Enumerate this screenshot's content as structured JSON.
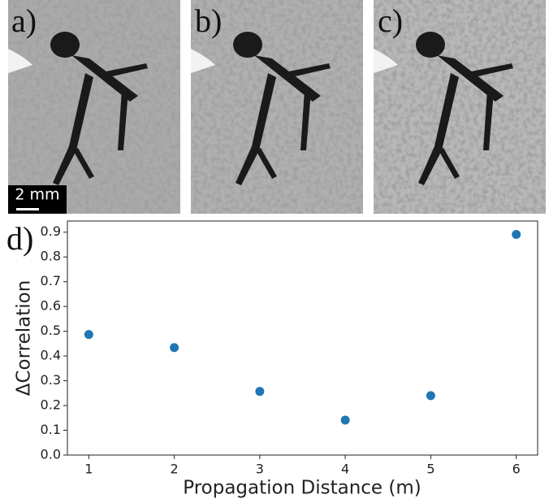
{
  "panels": [
    {
      "label": "a)"
    },
    {
      "label": "b)"
    },
    {
      "label": "c)"
    }
  ],
  "scale_bar": "2 mm",
  "chart_data": {
    "type": "scatter",
    "panel_label": "d)",
    "xlabel": "Propagation Distance (m)",
    "ylabel": "ΔCorrelation",
    "x": [
      1,
      2,
      3,
      4,
      5,
      6
    ],
    "values": [
      0.487,
      0.434,
      0.257,
      0.141,
      0.24,
      0.891
    ],
    "color": "#1f77b4",
    "xlim": [
      0.75,
      6.25
    ],
    "ylim": [
      0,
      0.945
    ],
    "xticks": [
      1,
      2,
      3,
      4,
      5,
      6
    ],
    "yticks": [
      {
        "value": 0,
        "label": "0.0"
      },
      0.1,
      0.2,
      0.3,
      0.4,
      0.5,
      0.6,
      0.7,
      0.8,
      0.9
    ]
  }
}
